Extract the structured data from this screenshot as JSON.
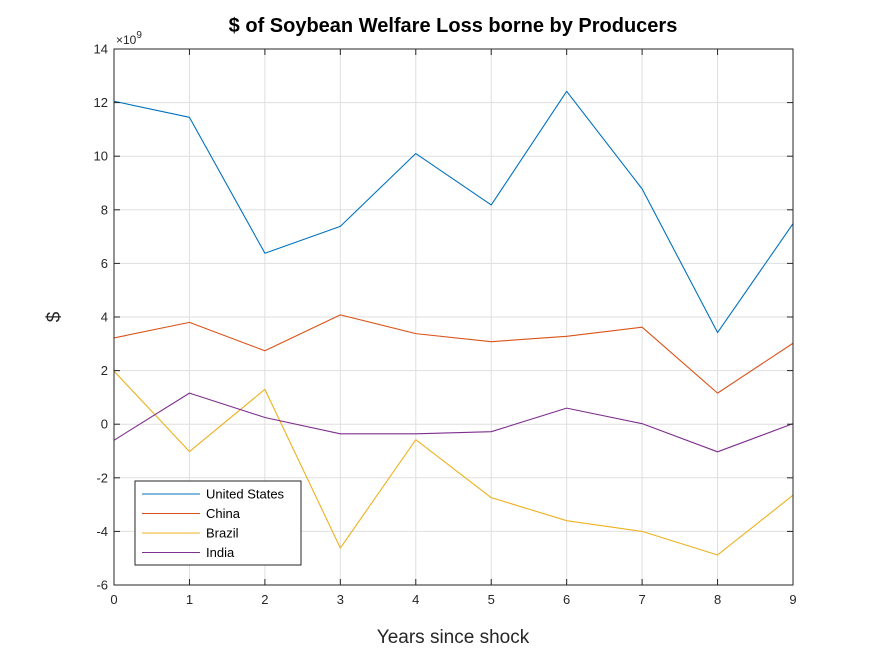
{
  "chart_data": {
    "type": "line",
    "title": "$  of Soybean Welfare Loss borne by Producers",
    "xlabel": "Years since shock",
    "ylabel": "$",
    "y_exponent_label": "×10",
    "y_exponent_power": "9",
    "xlim": [
      0,
      9
    ],
    "ylim": [
      -6,
      14
    ],
    "x_ticks": [
      0,
      1,
      2,
      3,
      4,
      5,
      6,
      7,
      8,
      9
    ],
    "y_ticks": [
      -6,
      -4,
      -2,
      0,
      2,
      4,
      6,
      8,
      10,
      12,
      14
    ],
    "grid": true,
    "legend_position": "bottom-left",
    "x": [
      0,
      1,
      2,
      3,
      4,
      5,
      6,
      7,
      8,
      9
    ],
    "series": [
      {
        "name": "United States",
        "color": "#0072BD",
        "values": [
          12.05,
          11.45,
          6.38,
          7.38,
          10.1,
          8.18,
          12.42,
          8.78,
          3.42,
          7.48
        ]
      },
      {
        "name": "China",
        "color": "#D95319",
        "values": [
          3.22,
          3.8,
          2.74,
          4.08,
          3.38,
          3.08,
          3.28,
          3.62,
          1.16,
          3.02
        ]
      },
      {
        "name": "Brazil",
        "color": "#EDB120",
        "values": [
          1.98,
          -1.02,
          1.3,
          -4.62,
          -0.58,
          -2.74,
          -3.6,
          -4.0,
          -4.88,
          -2.65
        ]
      },
      {
        "name": "India",
        "color": "#7E2F8E",
        "values": [
          -0.6,
          1.16,
          0.25,
          -0.36,
          -0.36,
          -0.28,
          0.6,
          0.02,
          -1.03,
          0.02
        ]
      }
    ]
  }
}
